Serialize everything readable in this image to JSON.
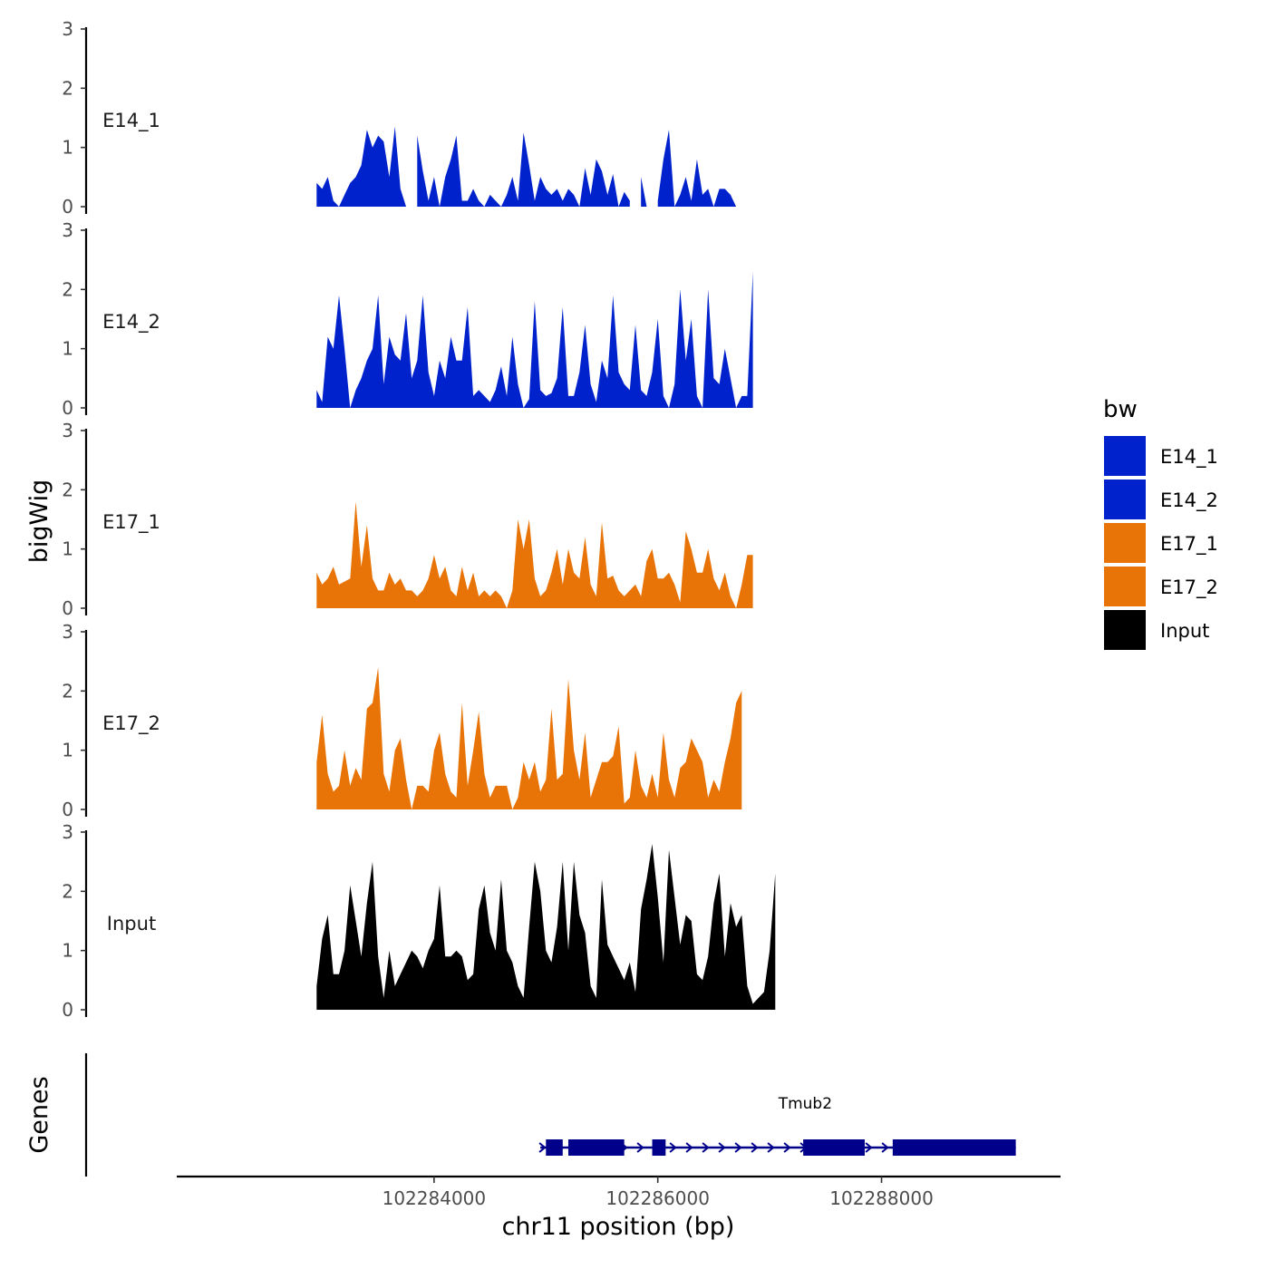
{
  "chart_data": {
    "type": "area",
    "ylabel": "bigWig",
    "xlabel": "chr11 position (bp)",
    "gene_track_label": "Genes",
    "y_ticks": [
      "0",
      "1",
      "2",
      "3"
    ],
    "ylim": [
      0,
      3
    ],
    "xlim": [
      102281700,
      102289600
    ],
    "x_ticks": [
      {
        "value": 102284000,
        "label": "102284000"
      },
      {
        "value": 102286000,
        "label": "102286000"
      },
      {
        "value": 102288000,
        "label": "102288000"
      }
    ],
    "legend": {
      "title": "bw",
      "position": "right",
      "items": [
        {
          "label": "E14_1",
          "color": "#0022cc"
        },
        {
          "label": "E14_2",
          "color": "#0022cc"
        },
        {
          "label": "E17_1",
          "color": "#e87306"
        },
        {
          "label": "E17_2",
          "color": "#e87306"
        },
        {
          "label": "Input",
          "color": "#000000"
        }
      ]
    },
    "x_start": 102282950,
    "x_step": 50,
    "series": [
      {
        "name": "E14_1",
        "color": "#0022cc",
        "values": [
          0.4,
          0.3,
          0.5,
          0.1,
          0.0,
          0.2,
          0.4,
          0.5,
          0.7,
          1.3,
          1.0,
          1.2,
          1.1,
          0.5,
          1.35,
          0.3,
          0.0,
          null,
          1.2,
          0.6,
          0.1,
          0.5,
          0.0,
          0.5,
          0.8,
          1.2,
          0.1,
          0.1,
          0.3,
          0.1,
          0.0,
          0.2,
          0.1,
          0.0,
          0.2,
          0.5,
          0.1,
          1.25,
          0.7,
          0.1,
          0.5,
          0.3,
          0.2,
          0.3,
          0.1,
          0.3,
          0.2,
          0.0,
          0.65,
          0.2,
          0.8,
          0.6,
          0.2,
          0.55,
          0.0,
          0.25,
          0.1,
          null,
          0.5,
          0.0,
          null,
          0.1,
          0.8,
          1.3,
          0.0,
          0.2,
          0.5,
          0.1,
          0.8,
          0.2,
          0.3,
          0.0,
          0.3,
          0.3,
          0.2,
          0.0
        ]
      },
      {
        "name": "E14_2",
        "color": "#0022cc",
        "values": [
          0.3,
          0.1,
          1.2,
          1.0,
          1.9,
          1.0,
          0.0,
          0.3,
          0.5,
          0.8,
          1.0,
          1.9,
          0.4,
          1.2,
          0.9,
          0.8,
          1.6,
          0.5,
          0.8,
          1.9,
          0.6,
          0.2,
          0.8,
          0.5,
          1.2,
          0.8,
          0.8,
          1.7,
          0.2,
          0.3,
          0.2,
          0.1,
          0.3,
          0.7,
          0.2,
          1.2,
          0.4,
          0.0,
          0.15,
          1.8,
          0.3,
          0.2,
          0.25,
          0.5,
          1.7,
          0.2,
          0.2,
          0.6,
          1.4,
          0.4,
          0.1,
          0.8,
          0.5,
          1.9,
          0.6,
          0.4,
          0.3,
          1.4,
          0.3,
          0.2,
          0.6,
          1.5,
          0.2,
          0.0,
          0.4,
          2.0,
          0.8,
          1.5,
          0.2,
          0.0,
          2.0,
          0.5,
          0.4,
          1.0,
          0.5,
          0.0,
          0.2,
          0.2,
          2.3
        ]
      },
      {
        "name": "E17_1",
        "color": "#e87306",
        "values": [
          0.6,
          0.4,
          0.5,
          0.7,
          0.4,
          0.45,
          0.5,
          1.8,
          0.7,
          1.4,
          0.5,
          0.3,
          0.3,
          0.6,
          0.4,
          0.5,
          0.3,
          0.3,
          0.2,
          0.3,
          0.5,
          0.9,
          0.5,
          0.7,
          0.3,
          0.2,
          0.7,
          0.3,
          0.6,
          0.2,
          0.3,
          0.2,
          0.3,
          0.2,
          0.0,
          0.3,
          1.5,
          1.0,
          1.5,
          0.5,
          0.2,
          0.3,
          0.6,
          1.0,
          0.4,
          1.0,
          0.6,
          0.5,
          1.2,
          0.4,
          0.2,
          1.45,
          0.5,
          0.55,
          0.3,
          0.2,
          0.3,
          0.4,
          0.2,
          0.8,
          1.0,
          0.5,
          0.5,
          0.6,
          0.4,
          0.1,
          1.3,
          1.0,
          0.6,
          0.6,
          1.0,
          0.5,
          0.3,
          0.6,
          0.2,
          0.0,
          0.4,
          0.9,
          0.9
        ]
      },
      {
        "name": "E17_2",
        "color": "#e87306",
        "values": [
          0.8,
          1.6,
          0.6,
          0.3,
          0.4,
          1.0,
          0.4,
          0.7,
          0.5,
          1.7,
          1.8,
          2.4,
          0.6,
          0.3,
          1.0,
          1.2,
          0.5,
          0.0,
          0.4,
          0.4,
          0.3,
          1.0,
          1.3,
          0.6,
          0.3,
          0.2,
          1.8,
          0.4,
          1.0,
          1.65,
          0.6,
          0.2,
          0.4,
          0.4,
          0.4,
          0.0,
          0.2,
          0.8,
          0.5,
          0.8,
          0.3,
          0.5,
          1.7,
          0.5,
          0.6,
          2.2,
          1.0,
          0.5,
          1.3,
          0.2,
          0.5,
          0.8,
          0.8,
          0.9,
          1.4,
          0.1,
          0.2,
          1.0,
          0.4,
          0.2,
          0.6,
          0.2,
          1.3,
          0.5,
          0.2,
          0.7,
          0.8,
          1.2,
          1.0,
          0.8,
          0.2,
          0.5,
          0.3,
          0.8,
          1.2,
          1.8,
          2.0
        ]
      },
      {
        "name": "Input",
        "color": "#000000",
        "values": [
          0.4,
          1.2,
          1.6,
          0.6,
          0.6,
          1.0,
          2.1,
          1.5,
          0.9,
          1.8,
          2.5,
          0.9,
          0.2,
          1.0,
          0.4,
          0.6,
          0.8,
          1.0,
          0.9,
          0.7,
          1.0,
          1.2,
          2.1,
          0.9,
          0.9,
          1.0,
          0.9,
          0.5,
          0.6,
          1.7,
          2.1,
          1.3,
          1.0,
          2.2,
          1.0,
          0.8,
          0.4,
          0.2,
          1.4,
          2.5,
          2.0,
          1.0,
          0.8,
          1.4,
          2.5,
          1.0,
          2.5,
          1.6,
          1.3,
          0.4,
          0.2,
          2.2,
          1.1,
          0.9,
          0.7,
          0.5,
          0.8,
          0.3,
          1.7,
          2.2,
          2.8,
          1.9,
          0.8,
          2.7,
          1.9,
          1.1,
          1.6,
          1.5,
          0.6,
          0.5,
          0.9,
          1.8,
          2.3,
          0.9,
          1.8,
          1.4,
          1.6,
          0.4,
          0.1,
          0.2,
          0.3,
          1.0,
          2.3
        ]
      }
    ],
    "genes": [
      {
        "name": "Tmub2",
        "strand": "+",
        "start": 102284950,
        "end": 102289200,
        "exons": [
          [
            102285000,
            102285150
          ],
          [
            102285200,
            102285700
          ],
          [
            102285950,
            102286070
          ],
          [
            102287300,
            102287850
          ],
          [
            102288100,
            102289200
          ]
        ]
      }
    ]
  }
}
